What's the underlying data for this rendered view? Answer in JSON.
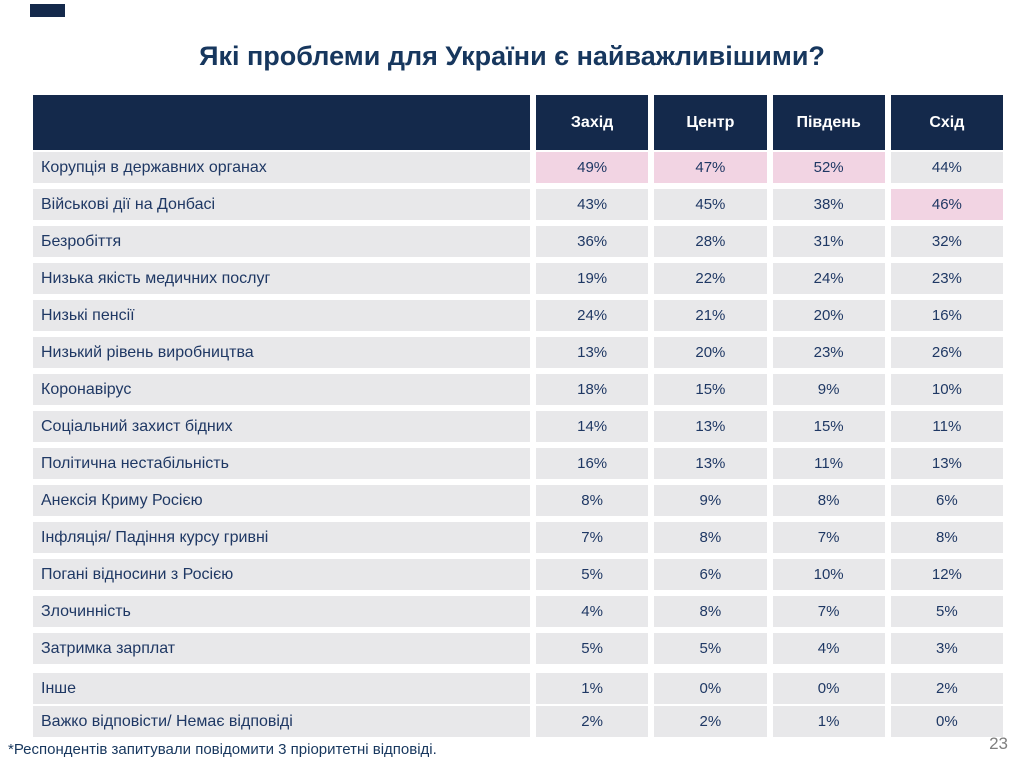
{
  "slide": {
    "title": "Які проблеми для України є найважливішими?",
    "footnote": "*Респондентів запитували повідомити 3 пріоритетні відповіді.",
    "page_number": "23"
  },
  "table": {
    "columns": [
      "Захід",
      "Центр",
      "Південь",
      "Схід"
    ],
    "rows": [
      {
        "label": "Корупція в державних органах",
        "values": [
          "49%",
          "47%",
          "52%",
          "44%"
        ],
        "highlighted": [
          0,
          1,
          2
        ]
      },
      {
        "label": "Військові дії на Донбасі",
        "values": [
          "43%",
          "45%",
          "38%",
          "46%"
        ],
        "highlighted": [
          3
        ]
      },
      {
        "label": "Безробіття",
        "values": [
          "36%",
          "28%",
          "31%",
          "32%"
        ],
        "highlighted": []
      },
      {
        "label": "Низька якість медичних послуг",
        "values": [
          "19%",
          "22%",
          "24%",
          "23%"
        ],
        "highlighted": []
      },
      {
        "label": "Низькі пенсії",
        "values": [
          "24%",
          "21%",
          "20%",
          "16%"
        ],
        "highlighted": []
      },
      {
        "label": "Низький рівень виробництва",
        "values": [
          "13%",
          "20%",
          "23%",
          "26%"
        ],
        "highlighted": []
      },
      {
        "label": "Коронавірус",
        "values": [
          "18%",
          "15%",
          "9%",
          "10%"
        ],
        "highlighted": []
      },
      {
        "label": "Соціальний захист бідних",
        "values": [
          "14%",
          "13%",
          "15%",
          "11%"
        ],
        "highlighted": []
      },
      {
        "label": "Політична нестабільність",
        "values": [
          "16%",
          "13%",
          "11%",
          "13%"
        ],
        "highlighted": []
      },
      {
        "label": "Анексія Криму Росією",
        "values": [
          "8%",
          "9%",
          "8%",
          "6%"
        ],
        "highlighted": []
      },
      {
        "label": "Інфляція/ Падіння курсу гривні",
        "values": [
          "7%",
          "8%",
          "7%",
          "8%"
        ],
        "highlighted": []
      },
      {
        "label": "Погані відносини з Росією",
        "values": [
          "5%",
          "6%",
          "10%",
          "12%"
        ],
        "highlighted": []
      },
      {
        "label": "Злочинність",
        "values": [
          "4%",
          "8%",
          "7%",
          "5%"
        ],
        "highlighted": []
      },
      {
        "label": "Затримка зарплат",
        "values": [
          "5%",
          "5%",
          "4%",
          "3%"
        ],
        "highlighted": []
      },
      {
        "label": "Інше",
        "values": [
          "1%",
          "0%",
          "0%",
          "2%"
        ],
        "highlighted": []
      },
      {
        "label": "Важко відповісти/ Немає відповіді",
        "values": [
          "2%",
          "2%",
          "1%",
          "0%"
        ],
        "highlighted": []
      }
    ]
  },
  "colors": {
    "header_navy": "#14294B",
    "row_gray": "#E8E8EA",
    "highlight_pink": "#F2D4E3",
    "text_navy": "#1F3864",
    "title_navy": "#17375E",
    "page_number_gray": "#7F7F7F"
  },
  "chart_data": {
    "type": "table",
    "title": "Які проблеми для України є найважливішими?",
    "categories": [
      "Захід",
      "Центр",
      "Південь",
      "Схід"
    ],
    "units": "%",
    "series": [
      {
        "name": "Корупція в державних органах",
        "values": [
          49,
          47,
          52,
          44
        ]
      },
      {
        "name": "Військові дії на Донбасі",
        "values": [
          43,
          45,
          38,
          46
        ]
      },
      {
        "name": "Безробіття",
        "values": [
          36,
          28,
          31,
          32
        ]
      },
      {
        "name": "Низька якість медичних послуг",
        "values": [
          19,
          22,
          24,
          23
        ]
      },
      {
        "name": "Низькі пенсії",
        "values": [
          24,
          21,
          20,
          16
        ]
      },
      {
        "name": "Низький рівень виробництва",
        "values": [
          13,
          20,
          23,
          26
        ]
      },
      {
        "name": "Коронавірус",
        "values": [
          18,
          15,
          9,
          10
        ]
      },
      {
        "name": "Соціальний захист бідних",
        "values": [
          14,
          13,
          15,
          11
        ]
      },
      {
        "name": "Політична нестабільність",
        "values": [
          16,
          13,
          11,
          13
        ]
      },
      {
        "name": "Анексія Криму Росією",
        "values": [
          8,
          9,
          8,
          6
        ]
      },
      {
        "name": "Інфляція/ Падіння курсу гривні",
        "values": [
          7,
          8,
          7,
          8
        ]
      },
      {
        "name": "Погані відносини з Росією",
        "values": [
          5,
          6,
          10,
          12
        ]
      },
      {
        "name": "Злочинність",
        "values": [
          4,
          8,
          7,
          5
        ]
      },
      {
        "name": "Затримка зарплат",
        "values": [
          5,
          5,
          4,
          3
        ]
      },
      {
        "name": "Інше",
        "values": [
          1,
          0,
          0,
          2
        ]
      },
      {
        "name": "Важко відповісти/ Немає відповіді",
        "values": [
          2,
          2,
          1,
          0
        ]
      }
    ],
    "highlighted_cells": [
      {
        "row": "Корупція в державних органах",
        "columns": [
          "Захід",
          "Центр",
          "Південь"
        ]
      },
      {
        "row": "Військові дії на Донбасі",
        "columns": [
          "Схід"
        ]
      }
    ],
    "footnote": "*Респондентів запитували повідомити 3 пріоритетні відповіді.",
    "page_number": "23"
  }
}
